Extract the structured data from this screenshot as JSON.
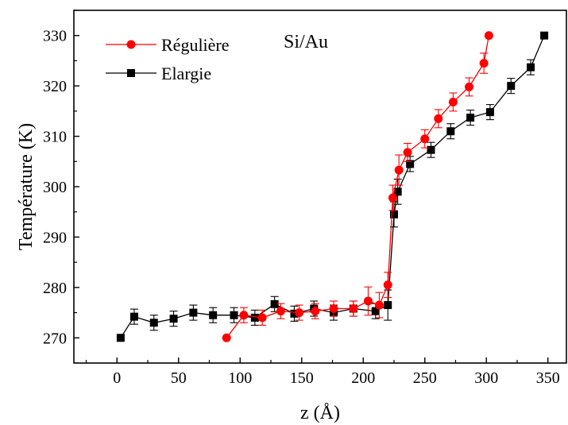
{
  "chart_data": {
    "type": "line",
    "title": "",
    "annotation": "Si/Au",
    "xlabel": "z (Å)",
    "ylabel": "Température (K)",
    "xlim": [
      -35,
      365
    ],
    "ylim": [
      265,
      335
    ],
    "xticks": [
      0,
      50,
      100,
      150,
      200,
      250,
      300,
      350
    ],
    "yticks": [
      270,
      280,
      290,
      300,
      310,
      320,
      330
    ],
    "grid": false,
    "legend_position": "top-left",
    "series": [
      {
        "name": "Régulière",
        "color": "#ff0000",
        "marker": "circle",
        "points": [
          {
            "x": 89,
            "y": 270.0,
            "err": 0
          },
          {
            "x": 103,
            "y": 274.5,
            "err": 1.5
          },
          {
            "x": 118,
            "y": 274.0,
            "err": 1.5
          },
          {
            "x": 133,
            "y": 275.3,
            "err": 1.5
          },
          {
            "x": 148,
            "y": 275.0,
            "err": 1.5
          },
          {
            "x": 161,
            "y": 275.3,
            "err": 1.5
          },
          {
            "x": 176,
            "y": 275.8,
            "err": 1.5
          },
          {
            "x": 192,
            "y": 275.8,
            "err": 1.5
          },
          {
            "x": 204,
            "y": 277.3,
            "err": 2.8
          },
          {
            "x": 213,
            "y": 276.5,
            "err": 2.5
          },
          {
            "x": 220,
            "y": 280.5,
            "err": 2.5
          },
          {
            "x": 224,
            "y": 297.8,
            "err": 2.5
          },
          {
            "x": 229,
            "y": 303.3,
            "err": 3.0
          },
          {
            "x": 236,
            "y": 306.8,
            "err": 1.8
          },
          {
            "x": 250,
            "y": 309.5,
            "err": 1.8
          },
          {
            "x": 261,
            "y": 313.5,
            "err": 1.8
          },
          {
            "x": 273,
            "y": 316.8,
            "err": 1.8
          },
          {
            "x": 286,
            "y": 319.8,
            "err": 1.8
          },
          {
            "x": 298,
            "y": 324.5,
            "err": 2.0
          },
          {
            "x": 302,
            "y": 330.0,
            "err": 0
          }
        ]
      },
      {
        "name": "Elargie",
        "color": "#000000",
        "marker": "square",
        "points": [
          {
            "x": 3,
            "y": 270.0,
            "err": 0
          },
          {
            "x": 14,
            "y": 274.2,
            "err": 1.5
          },
          {
            "x": 30,
            "y": 273.0,
            "err": 1.5
          },
          {
            "x": 46,
            "y": 273.8,
            "err": 1.5
          },
          {
            "x": 62,
            "y": 275.0,
            "err": 1.5
          },
          {
            "x": 78,
            "y": 274.5,
            "err": 1.5
          },
          {
            "x": 95,
            "y": 274.5,
            "err": 1.5
          },
          {
            "x": 112,
            "y": 274.0,
            "err": 1.5
          },
          {
            "x": 128,
            "y": 276.7,
            "err": 1.5
          },
          {
            "x": 144,
            "y": 274.8,
            "err": 1.5
          },
          {
            "x": 160,
            "y": 275.8,
            "err": 1.5
          },
          {
            "x": 176,
            "y": 275.0,
            "err": 1.5
          },
          {
            "x": 192,
            "y": 275.8,
            "err": 1.5
          },
          {
            "x": 210,
            "y": 275.3,
            "err": 1.5
          },
          {
            "x": 220,
            "y": 276.5,
            "err": 3.0
          },
          {
            "x": 225,
            "y": 294.5,
            "err": 2.5
          },
          {
            "x": 228,
            "y": 299.0,
            "err": 2.5
          },
          {
            "x": 238,
            "y": 304.5,
            "err": 1.5
          },
          {
            "x": 255,
            "y": 307.3,
            "err": 1.5
          },
          {
            "x": 271,
            "y": 311.0,
            "err": 1.5
          },
          {
            "x": 287,
            "y": 313.7,
            "err": 1.5
          },
          {
            "x": 303,
            "y": 314.8,
            "err": 1.5
          },
          {
            "x": 320,
            "y": 320.0,
            "err": 1.5
          },
          {
            "x": 336,
            "y": 323.7,
            "err": 1.5
          },
          {
            "x": 347,
            "y": 330.0,
            "err": 0
          }
        ]
      }
    ]
  }
}
